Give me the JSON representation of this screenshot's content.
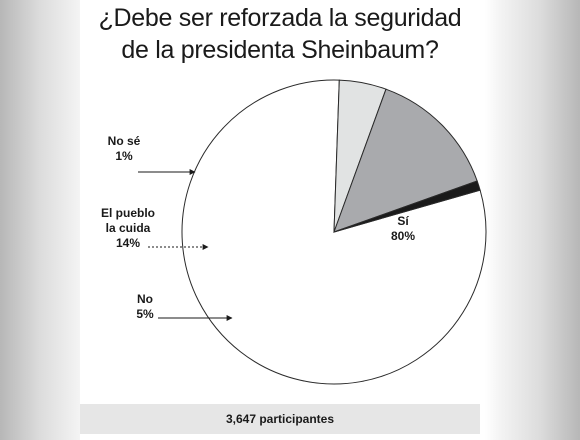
{
  "title": {
    "line1": "¿Debe ser reforzada la seguridad",
    "line2": "de la presidenta Sheinbaum?"
  },
  "chart_data": {
    "type": "pie",
    "title": "¿Debe ser reforzada la seguridad de la presidenta Sheinbaum?",
    "slices": [
      {
        "label": [
          "Sí"
        ],
        "value": 80,
        "value_label": "80%",
        "color": "#ffffff"
      },
      {
        "label": [
          "No"
        ],
        "value": 5,
        "value_label": "5%",
        "color": "#e1e3e3"
      },
      {
        "label": [
          "El pueblo",
          "la cuida"
        ],
        "value": 14,
        "value_label": "14%",
        "color": "#a9aaad"
      },
      {
        "label": [
          "No sé"
        ],
        "value": 1,
        "value_label": "1%",
        "color": "#1a1a1a"
      }
    ]
  },
  "footer": {
    "participants": "3,647 participantes"
  }
}
